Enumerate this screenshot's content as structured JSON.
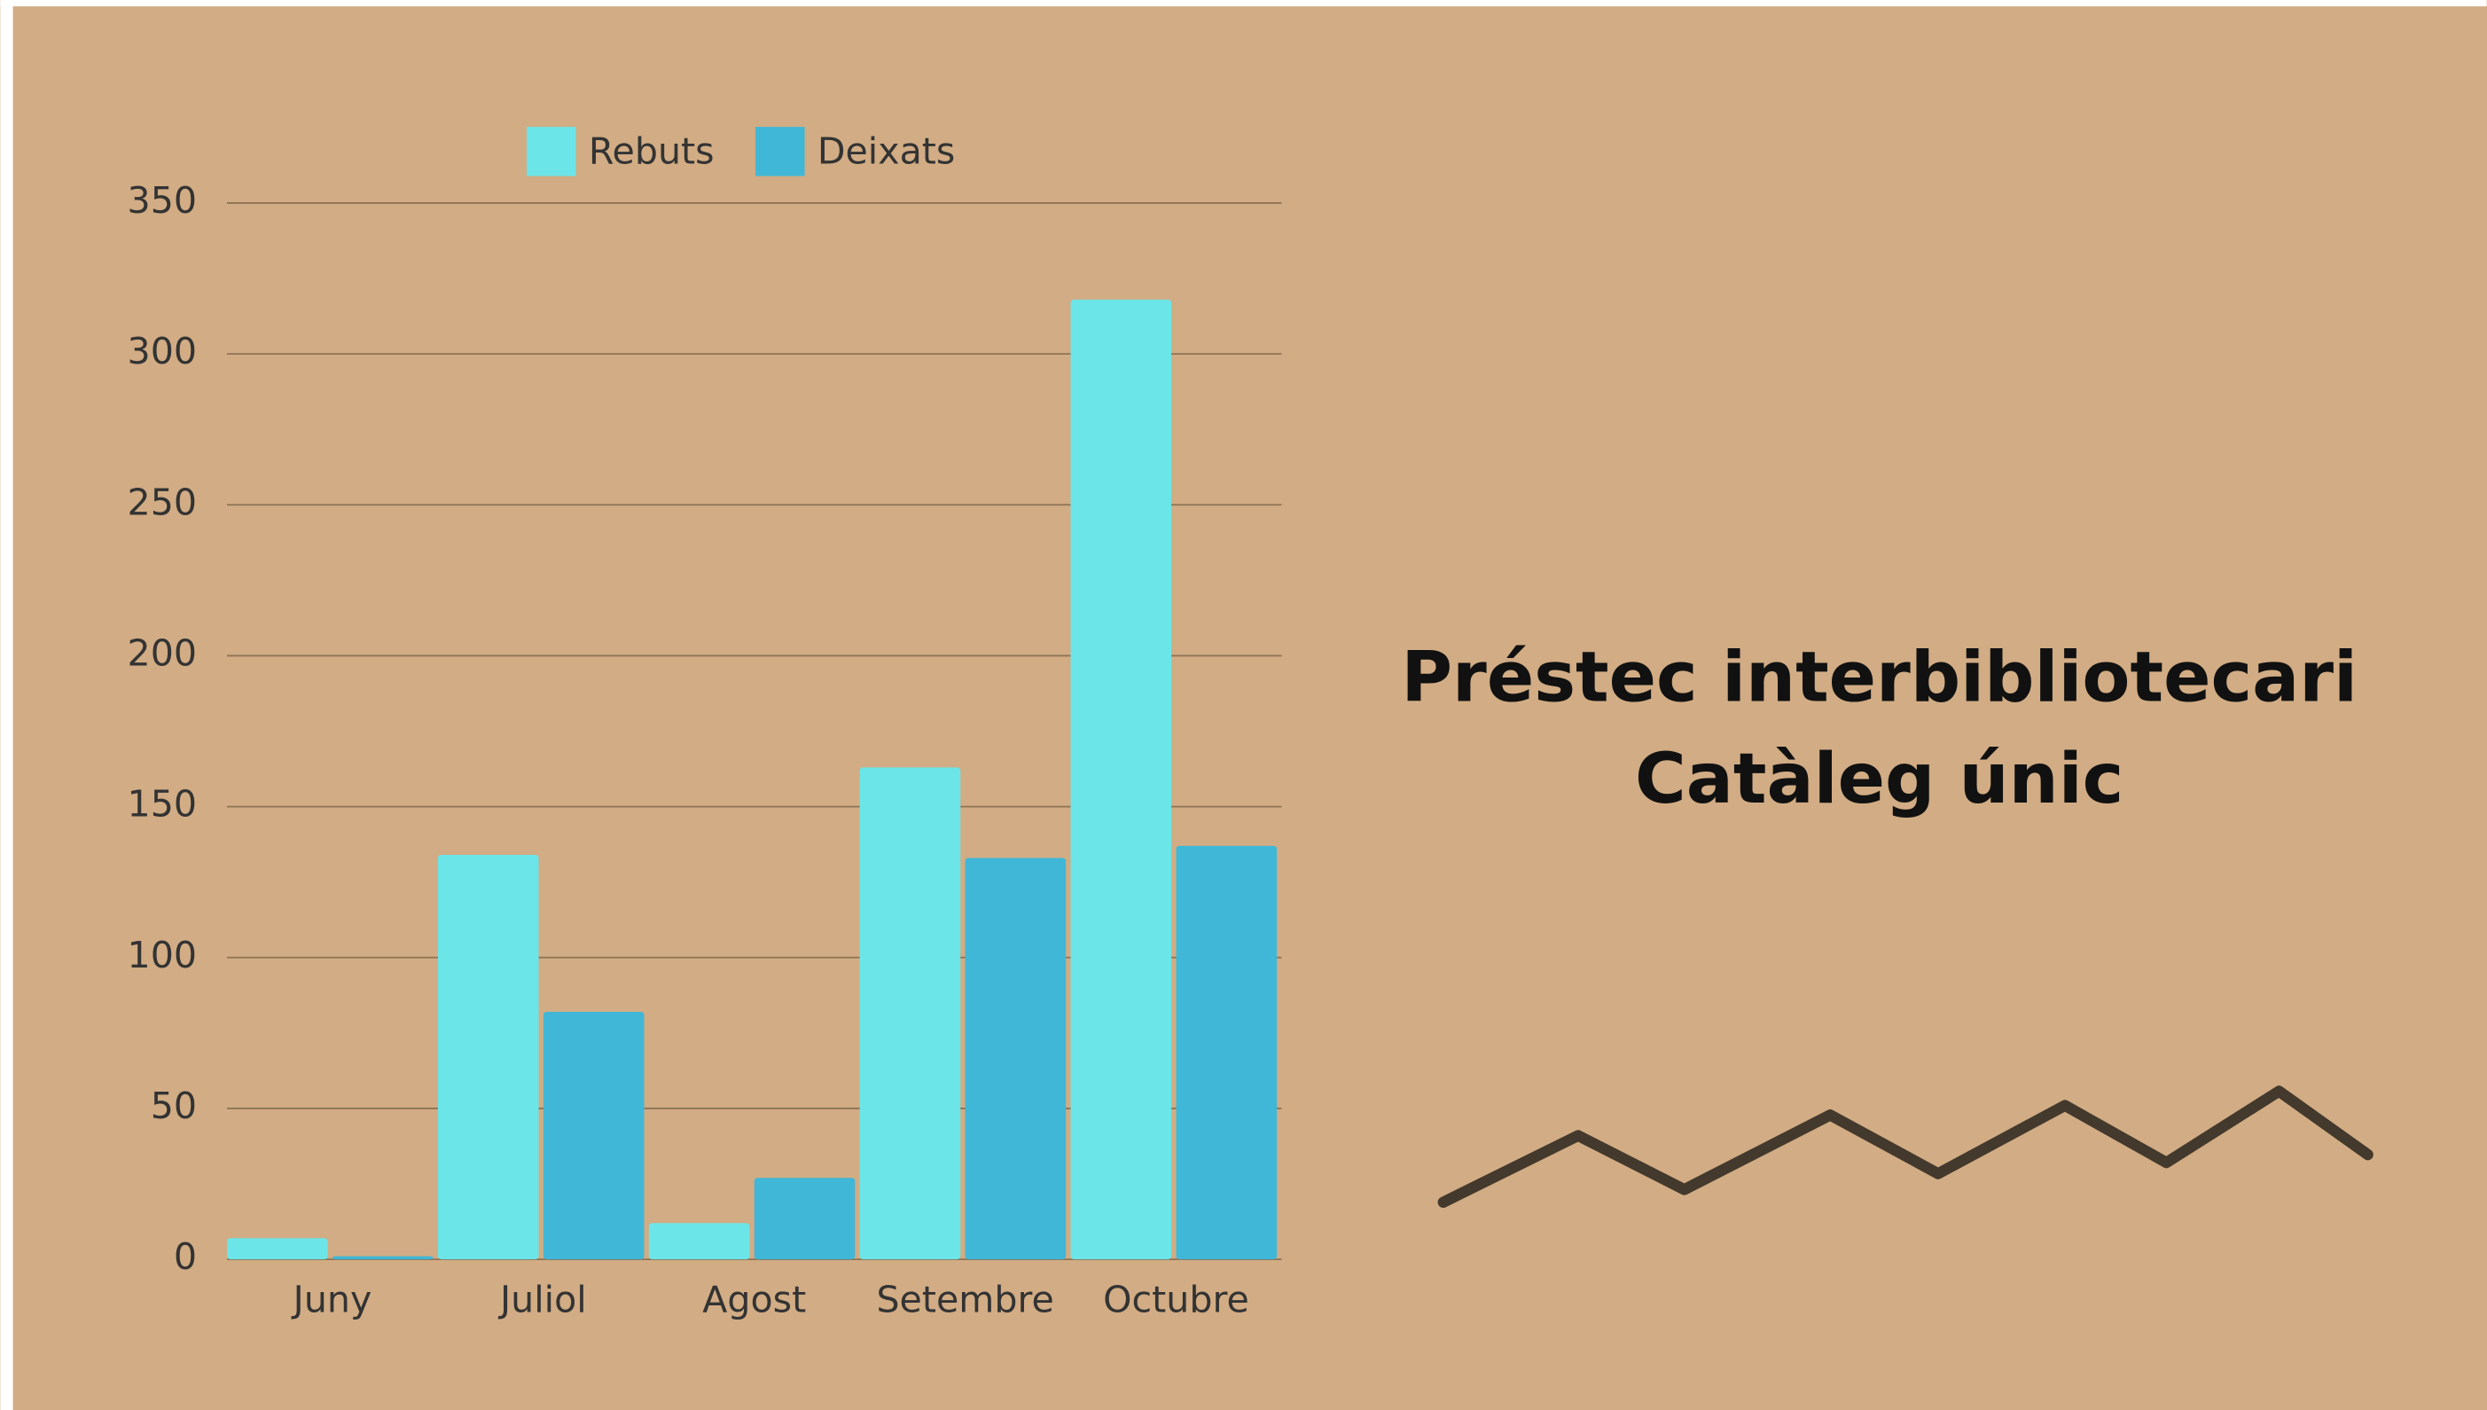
{
  "chart_data": {
    "type": "bar",
    "title": [
      "Préstec interbibliotecari",
      "Catàleg únic"
    ],
    "categories": [
      "Juny",
      "Juliol",
      "Agost",
      "Setembre",
      "Octubre"
    ],
    "series": [
      {
        "name": "Rebuts",
        "color": "#6ce5e8",
        "values": [
          7,
          134,
          12,
          163,
          318
        ]
      },
      {
        "name": "Deixats",
        "color": "#40b7d7",
        "values": [
          1,
          82,
          27,
          133,
          137
        ]
      }
    ],
    "ylim": [
      0,
      350
    ],
    "yticks": [
      0,
      50,
      100,
      150,
      200,
      250,
      300,
      350
    ],
    "grid": true,
    "legend": "top"
  }
}
